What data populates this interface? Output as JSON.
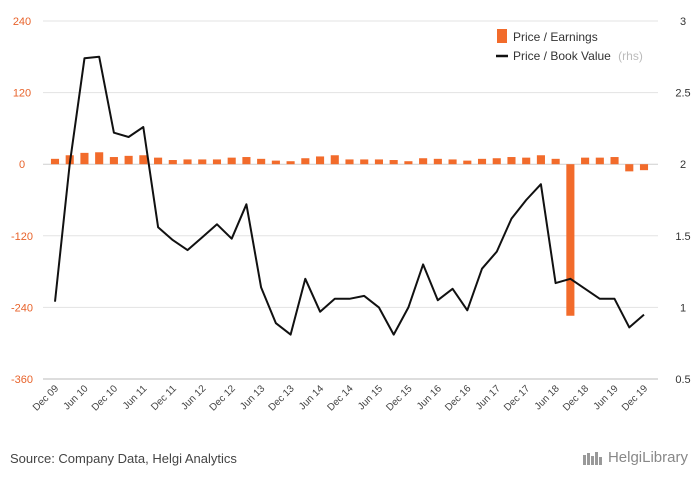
{
  "footer": {
    "source": "Source: Company Data, Helgi Analytics",
    "logo": "HelgiLibrary"
  },
  "chart_data": {
    "type": "bar",
    "colors": {
      "pe": "#f26b2b",
      "pbv": "#111111",
      "left_axis": "#e8632b"
    },
    "legend": {
      "placement": "top-right",
      "pe_label": "Price / Earnings",
      "pbv_label": "Price / Book Value",
      "pbv_suffix": "(rhs)"
    },
    "left_axis": {
      "ylim": [
        -360,
        240
      ],
      "ticks": [
        "240",
        "120",
        "0",
        "-120",
        "-240",
        "-360"
      ]
    },
    "right_axis": {
      "ylim": [
        0.5,
        3
      ],
      "ticks": [
        "3",
        "2.5",
        "2",
        "1.5",
        "1",
        "0.5"
      ]
    },
    "x_tick_labels": [
      "Dec 09",
      "Jun 10",
      "Dec 10",
      "Jun 11",
      "Dec 11",
      "Jun 12",
      "Dec 12",
      "Jun 13",
      "Dec 13",
      "Jun 14",
      "Dec 14",
      "Jun 15",
      "Dec 15",
      "Jun 16",
      "Dec 16",
      "Jun 17",
      "Dec 17",
      "Jun 18",
      "Dec 18",
      "Jun 19",
      "Dec 19"
    ],
    "x": [
      "Dec 09",
      "Mar 10",
      "Jun 10",
      "Sep 10",
      "Dec 10",
      "Mar 11",
      "Jun 11",
      "Sep 11",
      "Dec 11",
      "Mar 12",
      "Jun 12",
      "Sep 12",
      "Dec 12",
      "Mar 13",
      "Jun 13",
      "Sep 13",
      "Dec 13",
      "Mar 14",
      "Jun 14",
      "Sep 14",
      "Dec 14",
      "Mar 15",
      "Jun 15",
      "Sep 15",
      "Dec 15",
      "Mar 16",
      "Jun 16",
      "Sep 16",
      "Dec 16",
      "Mar 17",
      "Jun 17",
      "Sep 17",
      "Dec 17",
      "Mar 18",
      "Jun 18",
      "Sep 18",
      "Dec 18",
      "Mar 19",
      "Jun 19",
      "Sep 19",
      "Dec 19"
    ],
    "series": [
      {
        "name": "Price / Earnings",
        "axis": "left",
        "type": "bar",
        "values": [
          9,
          15,
          19,
          20,
          12,
          14,
          15,
          11,
          7,
          8,
          8,
          8,
          11,
          12,
          9,
          6,
          5,
          10,
          13,
          15,
          8,
          8,
          8,
          7,
          5,
          10,
          9,
          8,
          6,
          9,
          10,
          12,
          11,
          15,
          9,
          -254,
          11,
          11,
          12,
          -12,
          -10
        ]
      },
      {
        "name": "Price / Book Value",
        "axis": "right",
        "type": "line",
        "values": [
          1.04,
          2.0,
          2.74,
          2.75,
          2.22,
          2.19,
          2.26,
          1.56,
          1.47,
          1.4,
          1.49,
          1.58,
          1.48,
          1.72,
          1.14,
          0.89,
          0.81,
          1.2,
          0.97,
          1.06,
          1.06,
          1.08,
          1.0,
          0.81,
          1.0,
          1.3,
          1.05,
          1.13,
          0.98,
          1.27,
          1.39,
          1.62,
          1.75,
          1.86,
          1.17,
          1.2,
          1.13,
          1.06,
          1.06,
          0.86,
          0.95
        ]
      }
    ]
  }
}
